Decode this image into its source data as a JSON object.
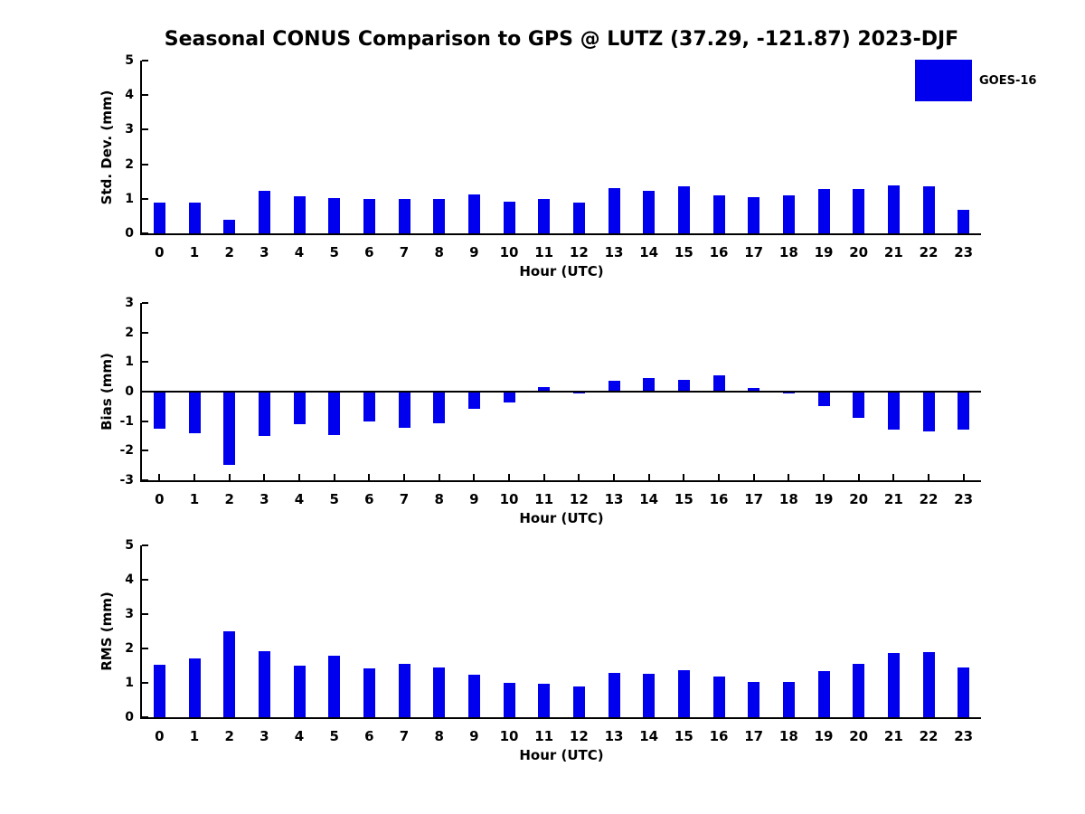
{
  "title": "Seasonal CONUS Comparison to GPS @ LUTZ (37.29, -121.87) 2023-DJF",
  "colors": {
    "bar": "#0000EE",
    "axis": "#000000",
    "text": "#000000",
    "background": "#FFFFFF"
  },
  "legend": {
    "position": "top-right",
    "items": [
      {
        "label": "GOES-16",
        "color": "#0000EE"
      }
    ]
  },
  "chart_data": [
    {
      "type": "bar",
      "title": "",
      "ylabel": "Std. Dev. (mm)",
      "xlabel": "Hour (UTC)",
      "categories": [
        "0",
        "1",
        "2",
        "3",
        "4",
        "5",
        "6",
        "7",
        "8",
        "9",
        "10",
        "11",
        "12",
        "13",
        "14",
        "15",
        "16",
        "17",
        "18",
        "19",
        "20",
        "21",
        "22",
        "23"
      ],
      "series": [
        {
          "name": "GOES-16",
          "color": "#0000EE",
          "values": [
            0.9,
            0.9,
            0.4,
            1.22,
            1.07,
            1.02,
            1.0,
            1.0,
            1.0,
            1.13,
            0.92,
            1.0,
            0.9,
            1.3,
            1.22,
            1.36,
            1.09,
            1.06,
            1.09,
            1.29,
            1.29,
            1.39,
            1.36,
            0.69
          ]
        }
      ],
      "ylim": [
        0,
        5
      ],
      "yticks": [
        0,
        1,
        2,
        3,
        4,
        5
      ],
      "grid": false,
      "zero_line": false,
      "legend_position": "top-right"
    },
    {
      "type": "bar",
      "title": "",
      "ylabel": "Bias (mm)",
      "xlabel": "Hour (UTC)",
      "categories": [
        "0",
        "1",
        "2",
        "3",
        "4",
        "5",
        "6",
        "7",
        "8",
        "9",
        "10",
        "11",
        "12",
        "13",
        "14",
        "15",
        "16",
        "17",
        "18",
        "19",
        "20",
        "21",
        "22",
        "23"
      ],
      "series": [
        {
          "name": "GOES-16",
          "color": "#0000EE",
          "values": [
            -1.24,
            -1.42,
            -2.48,
            -1.5,
            -1.09,
            -1.46,
            -1.02,
            -1.22,
            -1.06,
            -0.58,
            -0.38,
            0.15,
            -0.07,
            0.38,
            0.46,
            0.39,
            0.56,
            0.12,
            -0.05,
            -0.49,
            -0.9,
            -1.28,
            -1.36,
            -1.28
          ]
        }
      ],
      "ylim": [
        -3,
        3
      ],
      "yticks": [
        -3,
        -2,
        -1,
        0,
        1,
        2,
        3
      ],
      "grid": false,
      "zero_line": true,
      "legend_position": "none"
    },
    {
      "type": "bar",
      "title": "",
      "ylabel": "RMS (mm)",
      "xlabel": "Hour (UTC)",
      "categories": [
        "0",
        "1",
        "2",
        "3",
        "4",
        "5",
        "6",
        "7",
        "8",
        "9",
        "10",
        "11",
        "12",
        "13",
        "14",
        "15",
        "16",
        "17",
        "18",
        "19",
        "20",
        "21",
        "22",
        "23"
      ],
      "series": [
        {
          "name": "GOES-16",
          "color": "#0000EE",
          "values": [
            1.52,
            1.7,
            2.5,
            1.93,
            1.5,
            1.78,
            1.42,
            1.55,
            1.45,
            1.25,
            1.01,
            0.97,
            0.9,
            1.3,
            1.27,
            1.37,
            1.18,
            1.03,
            1.02,
            1.34,
            1.56,
            1.87,
            1.9,
            1.46
          ]
        }
      ],
      "ylim": [
        0,
        5
      ],
      "yticks": [
        0,
        1,
        2,
        3,
        4,
        5
      ],
      "grid": false,
      "zero_line": false,
      "legend_position": "none"
    }
  ]
}
